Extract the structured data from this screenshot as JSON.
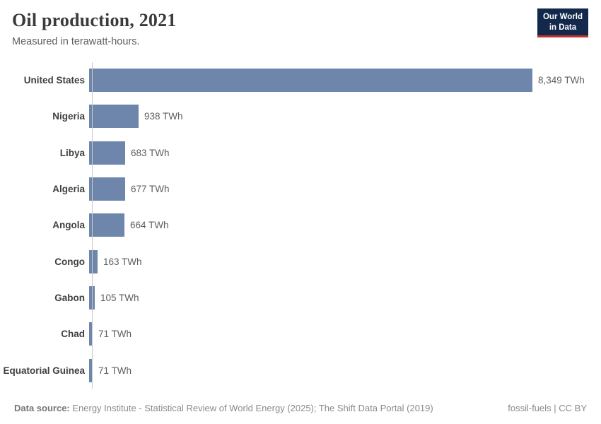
{
  "header": {
    "title": "Oil production, 2021",
    "subtitle": "Measured in terawatt-hours.",
    "logo": {
      "line1": "Our World",
      "line2": "in Data"
    }
  },
  "chart_data": {
    "type": "bar",
    "orientation": "horizontal",
    "title": "Oil production, 2021",
    "subtitle": "Measured in terawatt-hours.",
    "unit": "TWh",
    "xlim": [
      0,
      8349
    ],
    "grid": false,
    "legend": "none",
    "bar_color": "#6e86ac",
    "categories": [
      "United States",
      "Nigeria",
      "Libya",
      "Algeria",
      "Angola",
      "Congo",
      "Gabon",
      "Chad",
      "Equatorial Guinea"
    ],
    "values": [
      8349,
      938,
      683,
      677,
      664,
      163,
      105,
      71,
      71
    ],
    "value_labels": [
      "8,349 TWh",
      "938 TWh",
      "683 TWh",
      "677 TWh",
      "664 TWh",
      "163 TWh",
      "105 TWh",
      "71 TWh",
      "71 TWh"
    ]
  },
  "footer": {
    "datasource_label": "Data source:",
    "datasource_text": " Energy Institute - Statistical Review of World Energy (2025); The Shift Data Portal (2019)",
    "license": "fossil-fuels | CC BY"
  },
  "colors": {
    "bar": "#6e86ac",
    "axis_line": "#c9c9c9",
    "logo_bg": "#13294b",
    "logo_stripe": "#c0342b",
    "title_text": "#3b3b3b",
    "label_text": "#404040",
    "value_text": "#5e5e5e",
    "footer_text": "#8a8a8a"
  }
}
